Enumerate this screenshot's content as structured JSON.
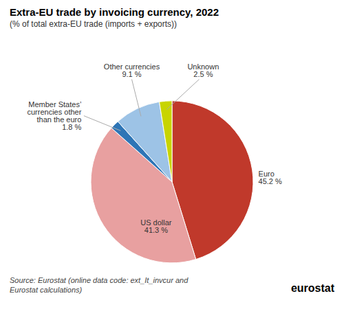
{
  "chart_data": {
    "type": "pie",
    "title": "Extra-EU trade by invoicing currency, 2022",
    "subtitle": "(% of total extra-EU trade (imports + exports))",
    "categories": [
      "Euro",
      "US dollar",
      "Member States’\ncurrencies other\nthan the euro",
      "Other currencies",
      "Unknown"
    ],
    "values": [
      45.2,
      41.3,
      1.8,
      9.1,
      2.5
    ],
    "value_labels": [
      "45.2 %",
      "41.3 %",
      "1.8 %",
      "9.1 %",
      "2.5 %"
    ],
    "colors": [
      "#c0392b",
      "#e8a0a0",
      "#2e75b6",
      "#9dc3e6",
      "#c8d400"
    ],
    "data_labels": true,
    "caption": "Source: Eurostat (online data code: ext_It_invcur and\nEurostat calculations)",
    "annotations": [
      "eurostat"
    ]
  }
}
